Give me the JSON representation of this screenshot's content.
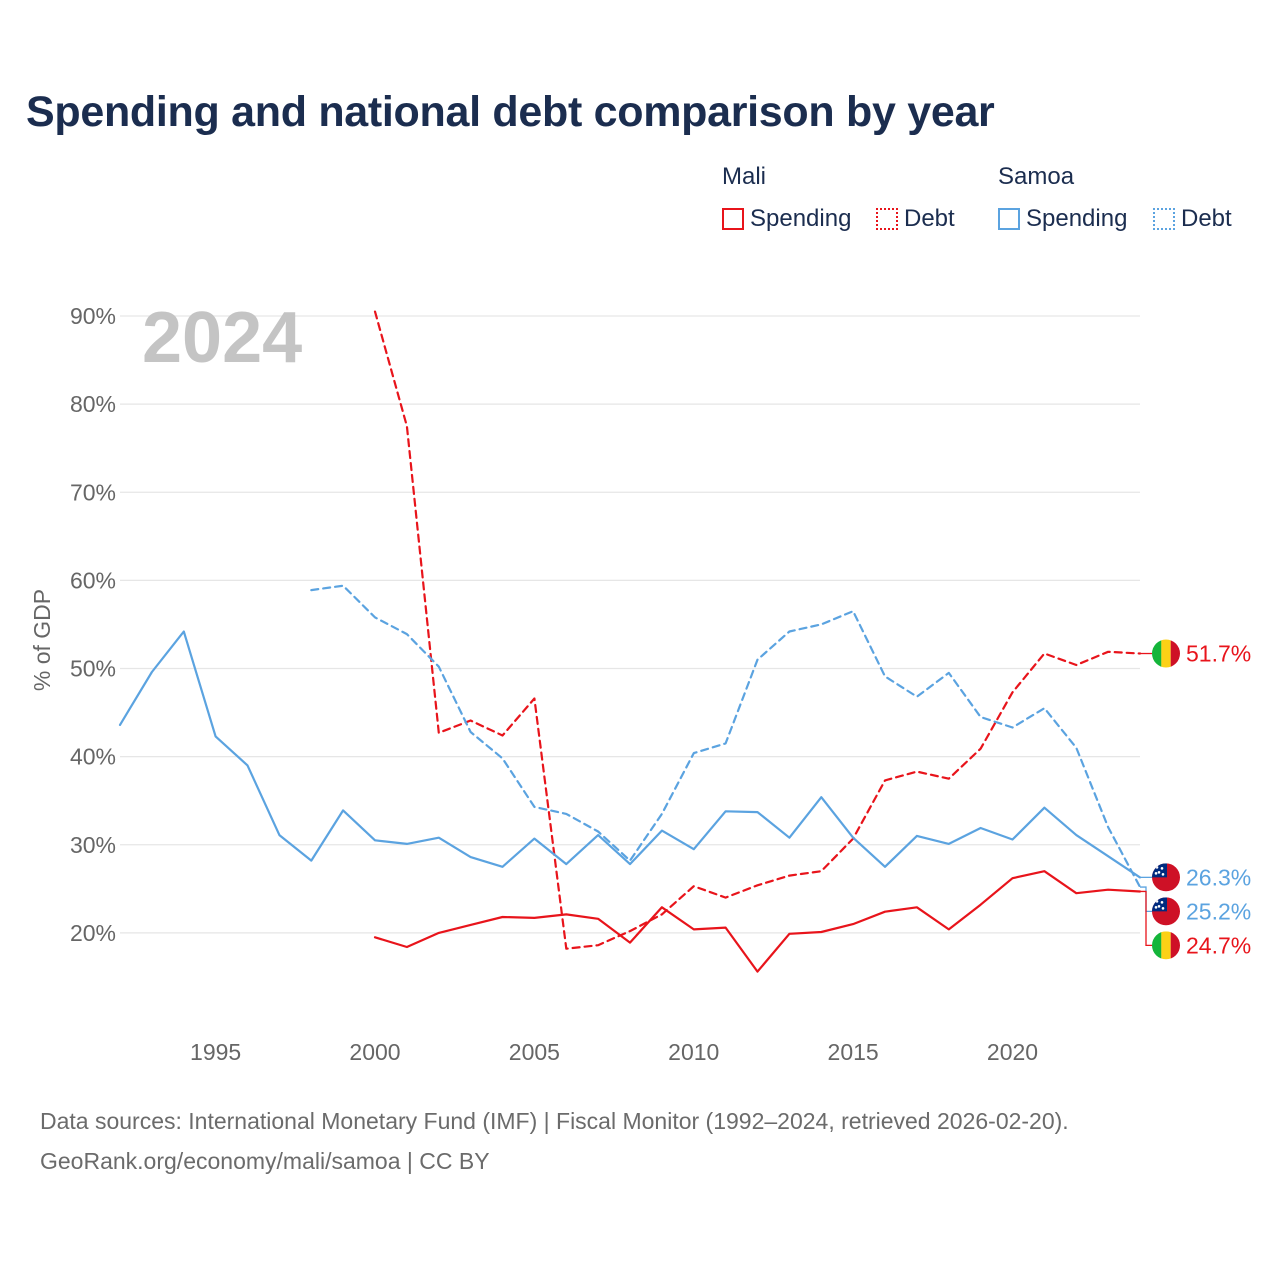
{
  "title": "Spending and national debt comparison by year",
  "legend": {
    "mali": {
      "title": "Mali",
      "spending_label": "Spending",
      "debt_label": "Debt",
      "color": "#e8141b"
    },
    "samoa": {
      "title": "Samoa",
      "spending_label": "Spending",
      "debt_label": "Debt",
      "color": "#5ba3e0"
    }
  },
  "source": {
    "line1": "Data sources: International Monetary Fund (IMF) | Fiscal Monitor (1992–2024, retrieved 2026-02-20).",
    "line2": "GeoRank.org/economy/mali/samoa | CC BY"
  },
  "chart_data": {
    "type": "line",
    "title": "Spending and national debt comparison by year",
    "year_watermark": "2024",
    "ylabel": "% of GDP",
    "xlabel": "",
    "xlim": [
      1992,
      2024
    ],
    "ylim": [
      10,
      90
    ],
    "x_ticks": [
      1995,
      2000,
      2005,
      2010,
      2015,
      2020
    ],
    "y_ticks": [
      20,
      30,
      40,
      50,
      60,
      70,
      80,
      90
    ],
    "y_tick_labels": [
      "20%",
      "30%",
      "40%",
      "50%",
      "60%",
      "70%",
      "80%",
      "90%"
    ],
    "grid": true,
    "series": [
      {
        "name": "Mali Spending",
        "country": "Mali",
        "color": "#e8141b",
        "dashed": false,
        "x": [
          2000,
          2001,
          2002,
          2003,
          2004,
          2005,
          2006,
          2007,
          2008,
          2009,
          2010,
          2011,
          2012,
          2013,
          2014,
          2015,
          2016,
          2017,
          2018,
          2019,
          2020,
          2021,
          2022,
          2023,
          2024
        ],
        "values": [
          19.5,
          18.4,
          20.0,
          20.9,
          21.8,
          21.7,
          22.1,
          21.6,
          18.9,
          22.9,
          20.4,
          20.6,
          15.6,
          19.9,
          20.1,
          21.0,
          22.4,
          22.9,
          20.4,
          23.2,
          26.2,
          27.0,
          24.5,
          24.9,
          24.7
        ],
        "end_label": "24.7%"
      },
      {
        "name": "Mali Debt",
        "country": "Mali",
        "color": "#e8141b",
        "dashed": true,
        "x": [
          2000,
          2001,
          2002,
          2003,
          2004,
          2005,
          2006,
          2007,
          2008,
          2009,
          2010,
          2011,
          2012,
          2013,
          2014,
          2015,
          2016,
          2017,
          2018,
          2019,
          2020,
          2021,
          2022,
          2023,
          2024
        ],
        "values": [
          90.5,
          77.5,
          42.7,
          44.1,
          42.4,
          46.6,
          18.2,
          18.6,
          20.2,
          22.1,
          25.3,
          24.0,
          25.4,
          26.5,
          27.0,
          30.7,
          37.3,
          38.3,
          37.5,
          40.9,
          47.3,
          51.7,
          50.4,
          51.9,
          51.7
        ],
        "end_label": "51.7%"
      },
      {
        "name": "Samoa Spending",
        "country": "Samoa",
        "color": "#5ba3e0",
        "dashed": false,
        "x": [
          1992,
          1993,
          1994,
          1995,
          1996,
          1997,
          1998,
          1999,
          2000,
          2001,
          2002,
          2003,
          2004,
          2005,
          2006,
          2007,
          2008,
          2009,
          2010,
          2011,
          2012,
          2013,
          2014,
          2015,
          2016,
          2017,
          2018,
          2019,
          2020,
          2021,
          2022,
          2023,
          2024
        ],
        "values": [
          43.6,
          49.6,
          54.2,
          42.3,
          39.0,
          31.1,
          28.2,
          33.9,
          30.5,
          30.1,
          30.8,
          28.6,
          27.5,
          30.7,
          27.8,
          31.1,
          27.8,
          31.6,
          29.5,
          33.8,
          33.7,
          30.8,
          35.4,
          30.8,
          27.5,
          31.0,
          30.1,
          31.9,
          30.6,
          34.2,
          31.1,
          28.7,
          26.3
        ],
        "end_label": "26.3%"
      },
      {
        "name": "Samoa Debt",
        "country": "Samoa",
        "color": "#5ba3e0",
        "dashed": true,
        "x": [
          1998,
          1999,
          2000,
          2001,
          2002,
          2003,
          2004,
          2005,
          2006,
          2007,
          2008,
          2009,
          2010,
          2011,
          2012,
          2013,
          2014,
          2015,
          2016,
          2017,
          2018,
          2019,
          2020,
          2021,
          2022,
          2023,
          2024
        ],
        "values": [
          58.9,
          59.4,
          55.8,
          53.9,
          50.2,
          42.8,
          39.8,
          34.3,
          33.5,
          31.5,
          28.2,
          33.5,
          40.4,
          41.5,
          51.0,
          54.2,
          55.0,
          56.5,
          49.1,
          46.8,
          49.5,
          44.5,
          43.3,
          45.5,
          41.0,
          32.0,
          25.2
        ],
        "end_label": "25.2%"
      }
    ]
  }
}
